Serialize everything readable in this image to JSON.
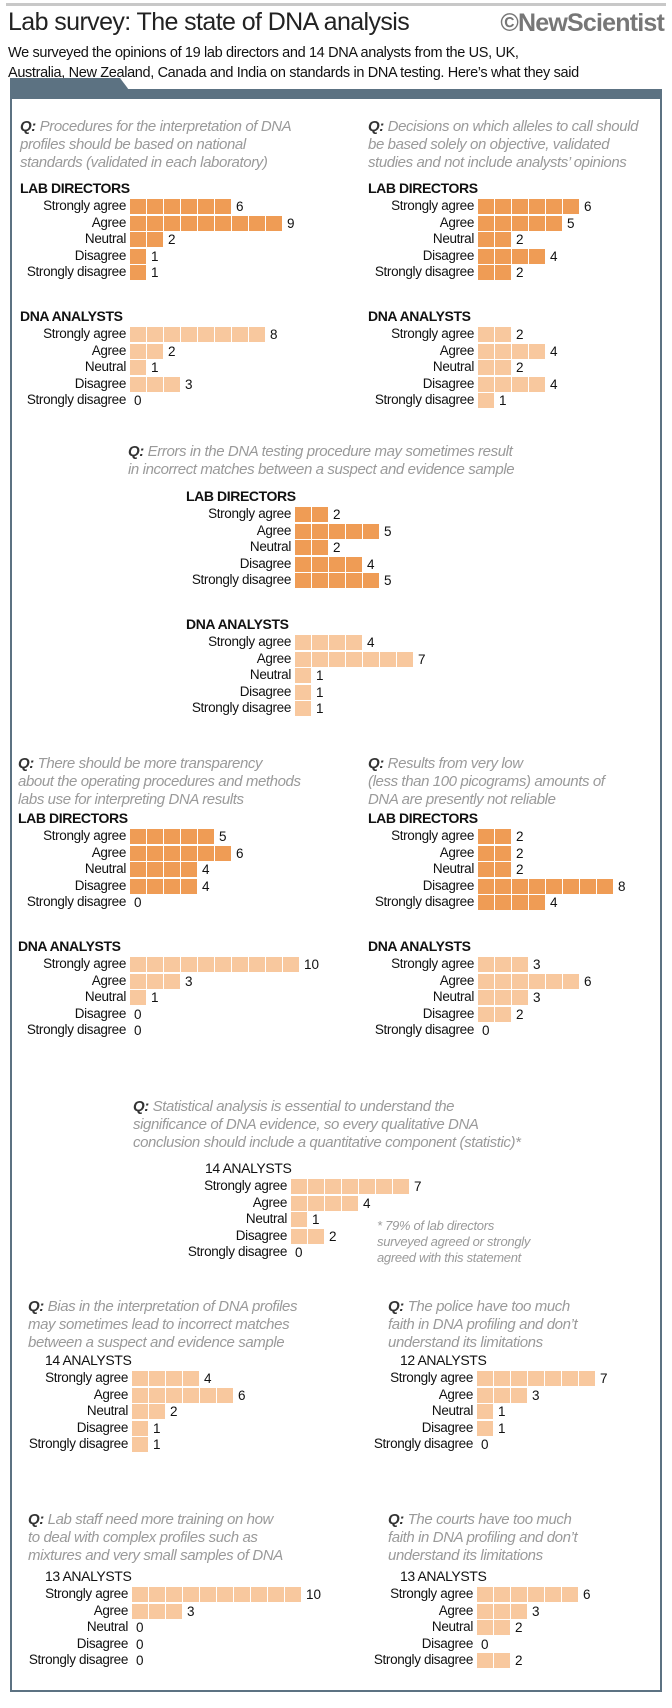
{
  "header": {
    "title": "Lab survey: The state of DNA analysis",
    "logo": "©NewScientist",
    "subtitle": [
      "We surveyed the opinions of 19 lab directors and 14 DNA analysts from the US, UK,",
      "Australia, New Zealand, Canada and India on standards in DNA testing. Here’s what they said"
    ]
  },
  "colors": {
    "lab_directors": "#ef9c55",
    "dna_analysts": "#f8c89e",
    "frame": "#5c7282",
    "question_text": "#9a9a9a"
  },
  "q_prefix": "Q:",
  "chart_data": {
    "type": "bar",
    "orientation": "horizontal",
    "unit_cells": true,
    "categories": [
      "Strongly agree",
      "Agree",
      "Neutral",
      "Disagree",
      "Strongly disagree"
    ],
    "questions": [
      {
        "text": [
          "Procedures for the interpretation of DNA",
          "profiles should be based on national",
          "standards (validated in each laboratory)"
        ],
        "groups": [
          {
            "title": "LAB DIRECTORS",
            "kind": "lab_directors",
            "values": [
              6,
              9,
              2,
              1,
              1
            ]
          },
          {
            "title": "DNA ANALYSTS",
            "kind": "dna_analysts",
            "values": [
              8,
              2,
              1,
              3,
              0
            ]
          }
        ]
      },
      {
        "text": [
          "Decisions on which alleles to call should",
          "be based solely on objective, validated",
          "studies and not include analysts’ opinions"
        ],
        "groups": [
          {
            "title": "LAB DIRECTORS",
            "kind": "lab_directors",
            "values": [
              6,
              5,
              2,
              4,
              2
            ]
          },
          {
            "title": "DNA ANALYSTS",
            "kind": "dna_analysts",
            "values": [
              2,
              4,
              2,
              4,
              1
            ]
          }
        ]
      },
      {
        "text": [
          "Errors in the DNA testing procedure may sometimes result",
          "in incorrect matches between a suspect and evidence sample"
        ],
        "groups": [
          {
            "title": "LAB DIRECTORS",
            "kind": "lab_directors",
            "values": [
              2,
              5,
              2,
              4,
              5
            ]
          },
          {
            "title": "DNA ANALYSTS",
            "kind": "dna_analysts",
            "values": [
              4,
              7,
              1,
              1,
              1
            ]
          }
        ]
      },
      {
        "text": [
          "There should be more transparency",
          "about the operating procedures and methods",
          "labs use for interpreting DNA results"
        ],
        "groups": [
          {
            "title": "LAB DIRECTORS",
            "kind": "lab_directors",
            "values": [
              5,
              6,
              4,
              4,
              0
            ]
          },
          {
            "title": "DNA ANALYSTS",
            "kind": "dna_analysts",
            "values": [
              10,
              3,
              1,
              0,
              0
            ]
          }
        ]
      },
      {
        "text": [
          "Results from very low",
          "(less than 100 picograms) amounts of",
          "DNA are presently not reliable"
        ],
        "groups": [
          {
            "title": "LAB DIRECTORS",
            "kind": "lab_directors",
            "values": [
              2,
              2,
              2,
              8,
              4
            ]
          },
          {
            "title": "DNA ANALYSTS",
            "kind": "dna_analysts",
            "values": [
              3,
              6,
              3,
              2,
              0
            ]
          }
        ]
      },
      {
        "text": [
          "Statistical analysis is essential to understand the",
          "significance of DNA evidence, so every qualitative DNA",
          "conclusion should include a quantitative component (statistic)*"
        ],
        "groups": [
          {
            "title": "14 ANALYSTS",
            "kind": "dna_analysts",
            "values": [
              7,
              4,
              1,
              2,
              0
            ]
          }
        ],
        "footnote": [
          "* 79% of lab directors",
          "surveyed agreed or strongly",
          "agreed with this statement"
        ]
      },
      {
        "text": [
          "Bias in the interpretation of DNA profiles",
          "may sometimes lead to incorrect matches",
          "between a suspect and evidence sample"
        ],
        "groups": [
          {
            "title": "14 ANALYSTS",
            "kind": "dna_analysts",
            "values": [
              4,
              6,
              2,
              1,
              1
            ]
          }
        ]
      },
      {
        "text": [
          "The police have too much",
          "faith in DNA profiling and don’t",
          "understand its limitations"
        ],
        "groups": [
          {
            "title": "12 ANALYSTS",
            "kind": "dna_analysts",
            "values": [
              7,
              3,
              1,
              1,
              0
            ]
          }
        ]
      },
      {
        "text": [
          "Lab staff need more training on how",
          "to deal with complex profiles such as",
          "mixtures and very small samples of DNA"
        ],
        "groups": [
          {
            "title": "13 ANALYSTS",
            "kind": "dna_analysts",
            "values": [
              10,
              3,
              0,
              0,
              0
            ]
          }
        ]
      },
      {
        "text": [
          "The courts have too much",
          "faith in DNA profiling and don’t",
          "understand its limitations"
        ],
        "groups": [
          {
            "title": "13 ANALYSTS",
            "kind": "dna_analysts",
            "values": [
              6,
              3,
              2,
              0,
              2
            ]
          }
        ]
      }
    ]
  }
}
